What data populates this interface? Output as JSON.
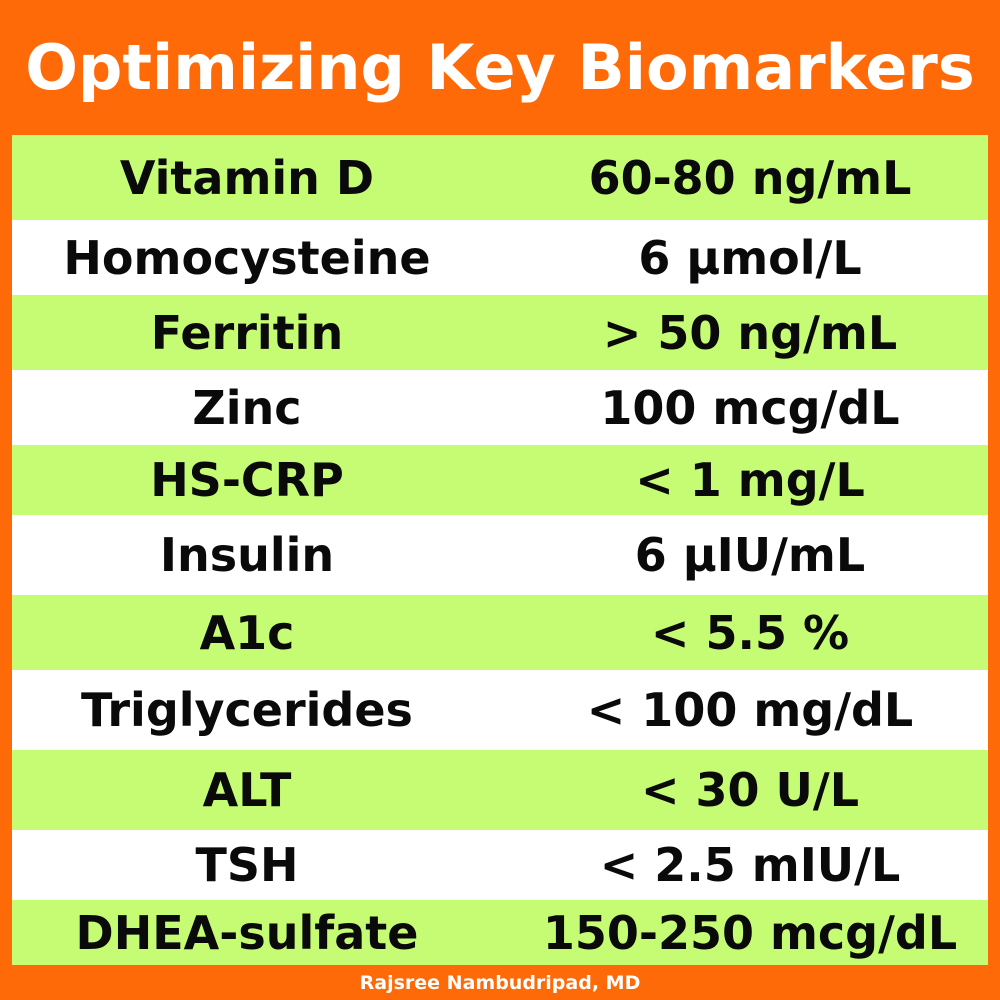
{
  "title": "Optimizing Key Biomarkers",
  "rows": [
    {
      "name": "Vitamin D",
      "value": "60-80 ng/mL"
    },
    {
      "name": "Homocysteine",
      "value": "6 μmol/L"
    },
    {
      "name": "Ferritin",
      "value": "> 50 ng/mL"
    },
    {
      "name": "Zinc",
      "value": "100 mcg/dL"
    },
    {
      "name": "HS-CRP",
      "value": "< 1 mg/L"
    },
    {
      "name": "Insulin",
      "value": "6 μIU/mL"
    },
    {
      "name": "A1c",
      "value": "< 5.5 %"
    },
    {
      "name": "Triglycerides",
      "value": "< 100 mg/dL"
    },
    {
      "name": "ALT",
      "value": "< 30 U/L"
    },
    {
      "name": "TSH",
      "value": "< 2.5 mIU/L"
    },
    {
      "name": "DHEA-sulfate",
      "value": "150-250 mcg/dL"
    }
  ],
  "footer": "Rajsree Nambudripad, MD",
  "colors": {
    "background": "#ff6a08",
    "row_green": "#c6fc73",
    "row_white": "#ffffff",
    "text": "#0a0a0a",
    "title_text": "#ffffff"
  }
}
